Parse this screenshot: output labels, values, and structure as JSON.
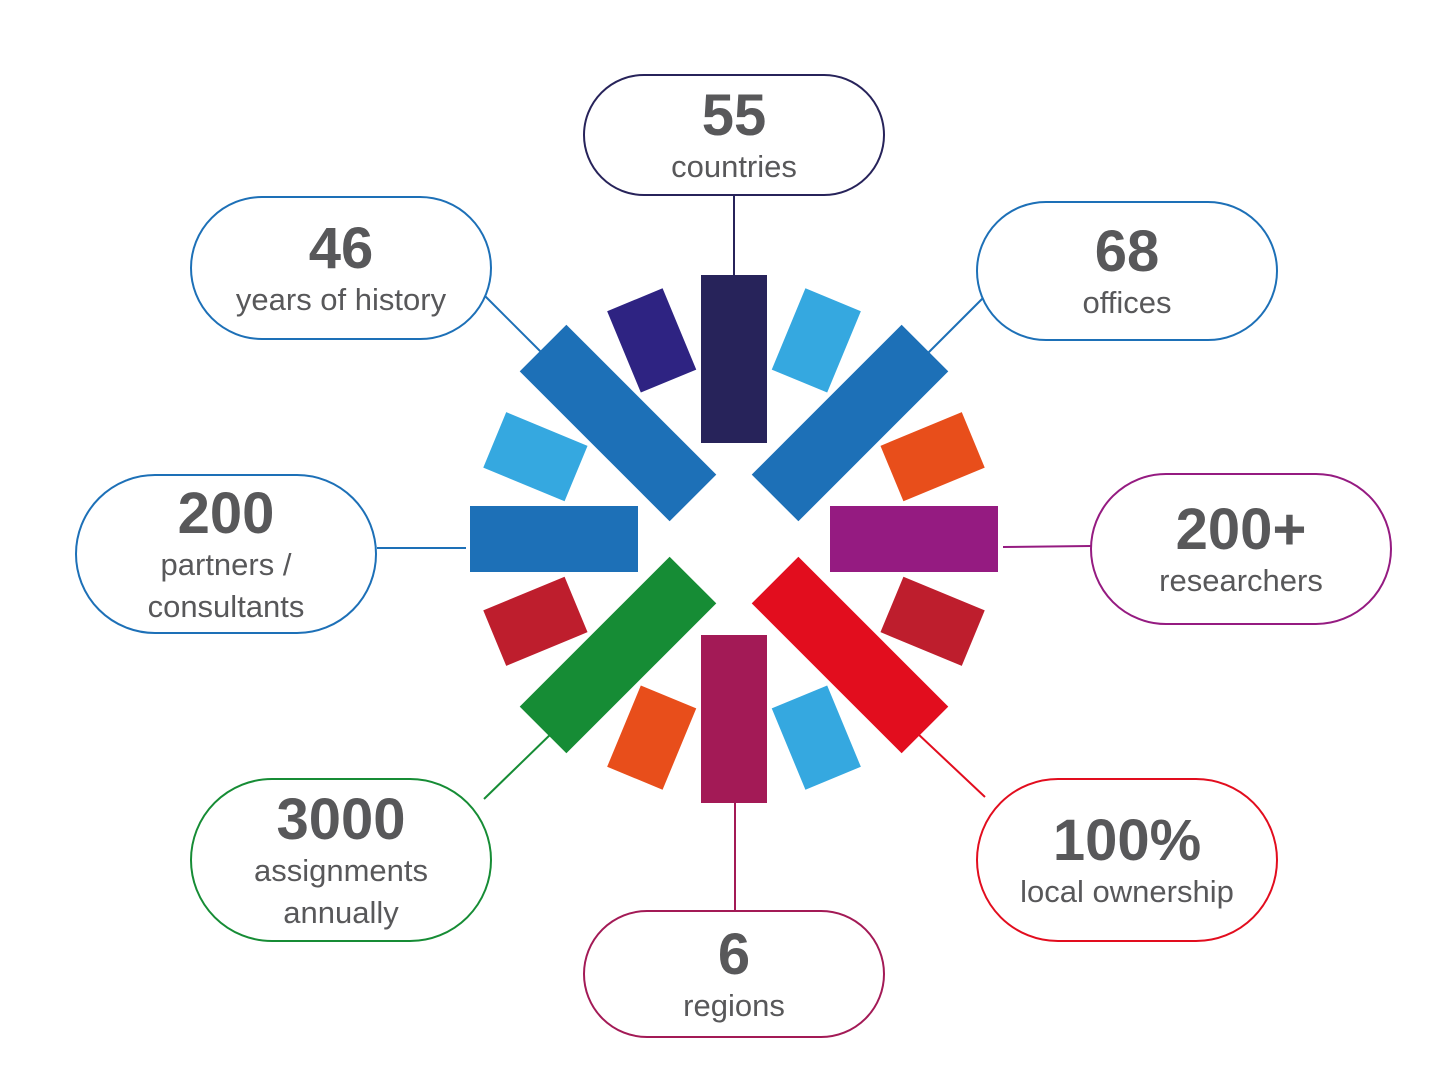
{
  "colors": {
    "navy": "#27235a",
    "indigo": "#2e2382",
    "sky": "#35a8e0",
    "blue": "#1d70b7",
    "orange": "#e84e1b",
    "purple": "#951b81",
    "dark_red": "#be1e2d",
    "red": "#e20d1e",
    "magenta": "#a31a56",
    "green": "#168c35",
    "text_gray": "#58585a"
  },
  "stats": [
    {
      "key": "countries",
      "number": "55",
      "label_lines": [
        "countries"
      ],
      "color": "#27235a"
    },
    {
      "key": "offices",
      "number": "68",
      "label_lines": [
        "offices"
      ],
      "color": "#1d70b7"
    },
    {
      "key": "researchers",
      "number": "200+",
      "label_lines": [
        "researchers"
      ],
      "color": "#951b81"
    },
    {
      "key": "local-ownership",
      "number": "100%",
      "label_lines": [
        "local ownership"
      ],
      "color": "#e20d1e"
    },
    {
      "key": "regions",
      "number": "6",
      "label_lines": [
        "regions"
      ],
      "color": "#a31a56"
    },
    {
      "key": "assignments",
      "number": "3000",
      "label_lines": [
        "assignments",
        "annually"
      ],
      "color": "#168c35"
    },
    {
      "key": "partners",
      "number": "200",
      "label_lines": [
        "partners /",
        "consultants"
      ],
      "color": "#1d70b7"
    },
    {
      "key": "history",
      "number": "46",
      "label_lines": [
        "years of history"
      ],
      "color": "#1d70b7"
    }
  ],
  "wheel": {
    "large_bar_colors": [
      "#27235a",
      "#1d70b7",
      "#951b81",
      "#e20d1e",
      "#a31a56",
      "#168c35",
      "#1d70b7",
      "#1d70b7"
    ],
    "small_bar_colors": [
      "#35a8e0",
      "#e84e1b",
      "#be1e2d",
      "#35a8e0",
      "#e84e1b",
      "#be1e2d",
      "#35a8e0",
      "#2e2382"
    ]
  }
}
